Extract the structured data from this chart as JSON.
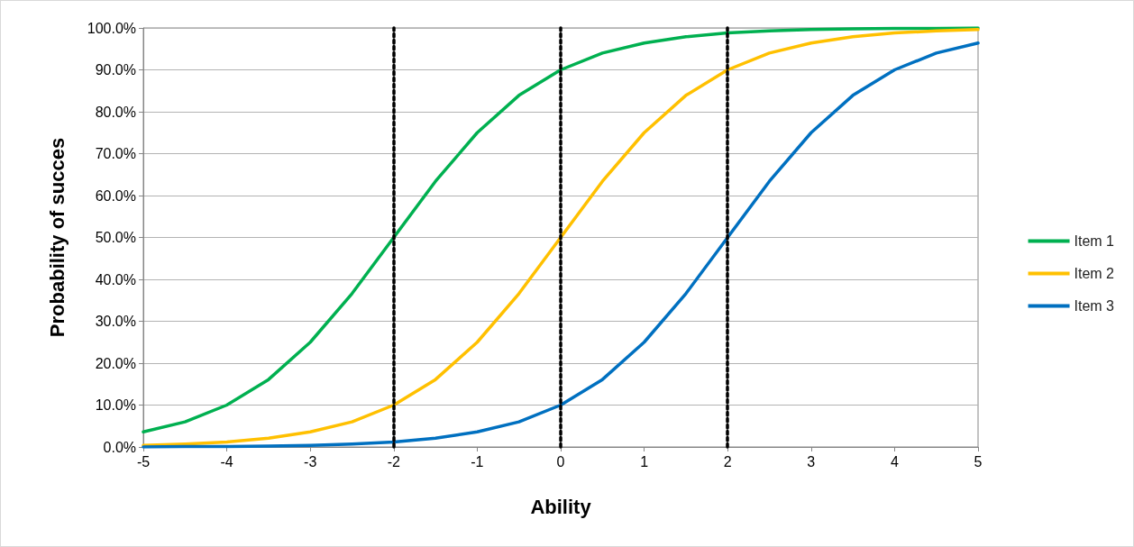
{
  "chart_data": {
    "type": "line",
    "xlabel": "Ability",
    "ylabel": "Probability of succes",
    "x": [
      -5,
      -4.5,
      -4,
      -3.5,
      -3,
      -2.5,
      -2,
      -1.5,
      -1,
      -0.5,
      0,
      0.5,
      1,
      1.5,
      2,
      2.5,
      3,
      3.5,
      4,
      4.5,
      5
    ],
    "series": [
      {
        "name": "Item 1",
        "color": "#00b050",
        "values": [
          3.6,
          6.0,
          10,
          16.1,
          25,
          36.6,
          50,
          63.4,
          75,
          83.9,
          90,
          94.0,
          96.4,
          97.9,
          98.8,
          99.3,
          99.6,
          99.8,
          99.9,
          99.9,
          100.0
        ]
      },
      {
        "name": "Item 2",
        "color": "#ffc000",
        "values": [
          0.4,
          0.7,
          1.2,
          2.1,
          3.6,
          6.0,
          10,
          16.1,
          25,
          36.6,
          50,
          63.4,
          75,
          83.9,
          90,
          94.0,
          96.4,
          97.9,
          98.8,
          99.3,
          99.6
        ]
      },
      {
        "name": "Item 3",
        "color": "#0070c0",
        "values": [
          0.0,
          0.1,
          0.1,
          0.2,
          0.4,
          0.7,
          1.2,
          2.1,
          3.6,
          6.0,
          10,
          16.1,
          25,
          36.6,
          50,
          63.4,
          75,
          83.9,
          90,
          94.0,
          96.4
        ]
      }
    ],
    "xlim": [
      -5,
      5
    ],
    "xticks": [
      -5,
      -4,
      -3,
      -2,
      -1,
      0,
      1,
      2,
      3,
      4,
      5
    ],
    "ylim": [
      0,
      100
    ],
    "yticks": [
      {
        "value": 0,
        "label": "0.0%"
      },
      {
        "value": 10,
        "label": "10.0%"
      },
      {
        "value": 20,
        "label": "20.0%"
      },
      {
        "value": 30,
        "label": "30.0%"
      },
      {
        "value": 40,
        "label": "40.0%"
      },
      {
        "value": 50,
        "label": "50.0%"
      },
      {
        "value": 60,
        "label": "60.0%"
      },
      {
        "value": 70,
        "label": "70.0%"
      },
      {
        "value": 80,
        "label": "80.0%"
      },
      {
        "value": 90,
        "label": "90.0%"
      },
      {
        "value": 100,
        "label": "100.0%"
      }
    ],
    "ref_lines": [
      {
        "axis": "x",
        "value": -2,
        "color": "#000000",
        "line_style": "dotted"
      },
      {
        "axis": "x",
        "value": 0,
        "color": "#000000",
        "line_style": "dotted"
      },
      {
        "axis": "x",
        "value": 2,
        "color": "#000000",
        "line_style": "dotted"
      }
    ],
    "grid": "y",
    "legend": "right",
    "marker": "none",
    "line_style": "solid"
  }
}
